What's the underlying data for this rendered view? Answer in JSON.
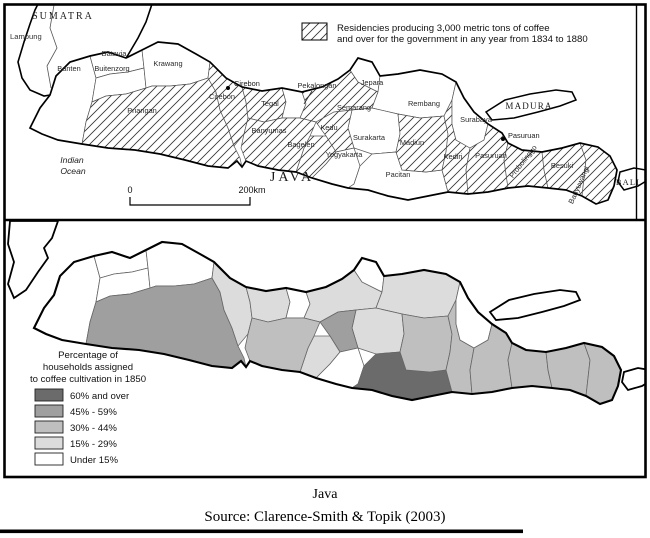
{
  "panels": {
    "top": {
      "legend_line1": "Residencies producing 3,000 metric tons of coffee",
      "legend_line2": "and over for the government in any year from 1834 to 1880",
      "scale_zero": "0",
      "scale_end": "200km",
      "sea_labels": {
        "sumatra": "SUMATRA",
        "lampung": "Lampung",
        "indian_ocean_line1": "Indian",
        "indian_ocean_line2": "Ocean",
        "java": "JAVA",
        "madura": "MADURA",
        "bali": "BALI"
      },
      "cities": [
        {
          "id": "cirebon",
          "name": "Cirebon"
        },
        {
          "id": "pasuruan",
          "name": "Pasuruan"
        }
      ]
    },
    "bottom": {
      "legend_title_line1": "Percentage of",
      "legend_title_line2": "households assigned",
      "legend_title_line3": "to coffee cultivation in 1850",
      "classes": [
        {
          "key": "c60",
          "label": "60% and over",
          "color": "#6b6b6b"
        },
        {
          "key": "c45",
          "label": "45% - 59%",
          "color": "#9f9f9f"
        },
        {
          "key": "c30",
          "label": "30% - 44%",
          "color": "#bfbfbf"
        },
        {
          "key": "c15",
          "label": "15% - 29%",
          "color": "#dcdcdc"
        },
        {
          "key": "u15",
          "label": "Under 15%",
          "color": "#ffffff"
        }
      ]
    }
  },
  "caption": {
    "title": "Java",
    "source": "Source: Clarence-Smith & Topik (2003)"
  },
  "regions": [
    {
      "id": "banten",
      "name": "Banten",
      "hatched": false,
      "cls": "u15"
    },
    {
      "id": "batavia",
      "name": "Batavia",
      "hatched": false,
      "cls": "u15"
    },
    {
      "id": "buitenzorg",
      "name": "Buitenzorg",
      "hatched": false,
      "cls": "u15"
    },
    {
      "id": "krawang",
      "name": "Krawang",
      "hatched": false,
      "cls": "u15"
    },
    {
      "id": "priangan",
      "name": "Priangan",
      "hatched": true,
      "cls": "c45"
    },
    {
      "id": "cirebon",
      "name": "Cirebon",
      "hatched": true,
      "cls": "c15"
    },
    {
      "id": "tegal",
      "name": "Tegal",
      "hatched": true,
      "cls": "c15"
    },
    {
      "id": "pekalongan",
      "name": "Pekalongan",
      "hatched": false,
      "cls": "u15"
    },
    {
      "id": "semarang",
      "name": "Semarang",
      "hatched": true,
      "cls": "c15"
    },
    {
      "id": "jepara",
      "name": "Jepara",
      "hatched": false,
      "cls": "u15"
    },
    {
      "id": "rembang",
      "name": "Rembang",
      "hatched": false,
      "cls": "c15"
    },
    {
      "id": "surakarta",
      "name": "Surakarta",
      "hatched": false,
      "cls": "c15"
    },
    {
      "id": "kedu",
      "name": "Kedu",
      "hatched": true,
      "cls": "c45"
    },
    {
      "id": "bagelen",
      "name": "Bagelen",
      "hatched": true,
      "cls": "c15"
    },
    {
      "id": "banyumas",
      "name": "Banyumas",
      "hatched": true,
      "cls": "c30"
    },
    {
      "id": "yogyakarta",
      "name": "Yogyakarta",
      "hatched": false,
      "cls": "u15"
    },
    {
      "id": "pacitan",
      "name": "Pacitan",
      "hatched": false,
      "cls": "c60"
    },
    {
      "id": "madiun",
      "name": "Madiun",
      "hatched": true,
      "cls": "c30"
    },
    {
      "id": "kediri",
      "name": "Kediri",
      "hatched": true,
      "cls": "c30"
    },
    {
      "id": "surabaya",
      "name": "Surabaya",
      "hatched": false,
      "cls": "u15"
    },
    {
      "id": "pasuruan",
      "name": "Pasuruan",
      "hatched": true,
      "cls": "c30"
    },
    {
      "id": "probolinggo",
      "name": "Probolinggo",
      "hatched": true,
      "cls": "c30"
    },
    {
      "id": "besuki",
      "name": "Besuki",
      "hatched": true,
      "cls": "c30"
    },
    {
      "id": "banyuwangi",
      "name": "Banyuwangi",
      "hatched": true,
      "cls": "c30"
    }
  ]
}
